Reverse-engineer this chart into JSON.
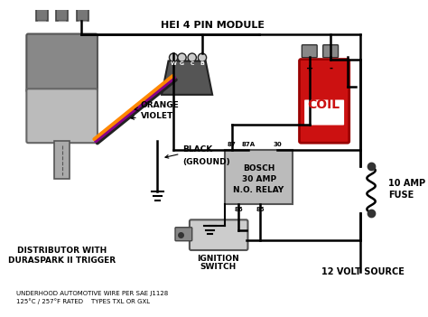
{
  "bg_color": "#ffffff",
  "title": "HEI 4 PIN MODULE",
  "bottom_text1": "UNDERHOOD AUTOMOTIVE WIRE PER SAE J1128",
  "bottom_text2": "125°C / 257°F RATED    TYPES TXL OR GXL",
  "distributor_label1": "DISTRIBUTOR WITH",
  "distributor_label2": "DURASPARK II TRIGGER",
  "coil_label": "COIL",
  "relay_label1": "BOSCH",
  "relay_label2": "30 AMP",
  "relay_label3": "N.O. RELAY",
  "fuse_label1": "10 AMP",
  "fuse_label2": "FUSE",
  "source_label": "12 VOLT SOURCE",
  "ignition_label1": "IGNITION",
  "ignition_label2": "SWITCH",
  "orange_label": "ORANGE",
  "violet_label": "VIOLET",
  "black_label1": "BLACK",
  "black_label2": "(GROUND)"
}
